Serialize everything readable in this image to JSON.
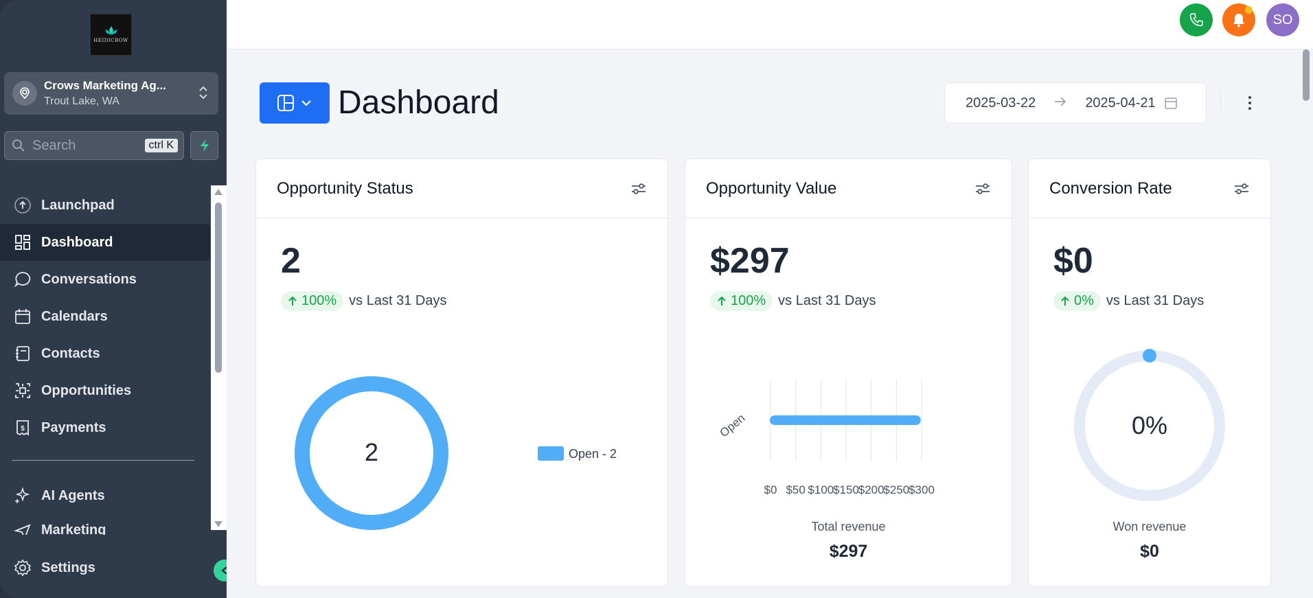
{
  "sidebar": {
    "logo_text": "HEIDICROW",
    "location": {
      "name": "Crows Marketing Ag...",
      "city": "Trout Lake, WA"
    },
    "search": {
      "placeholder": "Search",
      "shortcut": "ctrl K"
    },
    "nav": [
      {
        "label": "Launchpad",
        "icon": "launchpad-icon"
      },
      {
        "label": "Dashboard",
        "icon": "dashboard-icon",
        "active": true
      },
      {
        "label": "Conversations",
        "icon": "chat-icon"
      },
      {
        "label": "Calendars",
        "icon": "calendar-icon"
      },
      {
        "label": "Contacts",
        "icon": "contacts-icon"
      },
      {
        "label": "Opportunities",
        "icon": "opportunities-icon"
      },
      {
        "label": "Payments",
        "icon": "payments-icon"
      }
    ],
    "nav2": [
      {
        "label": "AI Agents",
        "icon": "ai-agents-icon"
      },
      {
        "label": "Marketing",
        "icon": "send-icon"
      }
    ],
    "settings_label": "Settings"
  },
  "topbar": {
    "avatar_initials": "SO",
    "colors": {
      "phone": "#16a34a",
      "bell": "#f97316",
      "avatar": "#8b6fc7"
    }
  },
  "header": {
    "title": "Dashboard",
    "date_start": "2025-03-22",
    "date_end": "2025-04-21"
  },
  "cards": {
    "status": {
      "title": "Opportunity Status",
      "value": "2",
      "change": "100%",
      "compare": "vs Last 31 Days",
      "donut_center": "2",
      "legend": "Open - 2"
    },
    "value": {
      "title": "Opportunity Value",
      "value": "$297",
      "change": "100%",
      "compare": "vs Last 31 Days",
      "footer_label": "Total revenue",
      "footer_value": "$297"
    },
    "conversion": {
      "title": "Conversion Rate",
      "value": "$0",
      "change": "0%",
      "compare": "vs Last 31 Days",
      "gauge_center": "0%",
      "footer_label": "Won revenue",
      "footer_value": "$0"
    }
  },
  "chart_data": [
    {
      "type": "pie",
      "categories": [
        "Open"
      ],
      "values": [
        2
      ]
    },
    {
      "type": "bar",
      "orientation": "horizontal",
      "categories": [
        "Open"
      ],
      "values": [
        297
      ],
      "xticks": [
        "$0",
        "$50",
        "$100",
        "$150",
        "$200",
        "$250",
        "$300"
      ],
      "xlim": [
        0,
        300
      ]
    },
    {
      "type": "pie",
      "categories": [
        "Won"
      ],
      "values": [
        0
      ],
      "unit": "%"
    }
  ]
}
